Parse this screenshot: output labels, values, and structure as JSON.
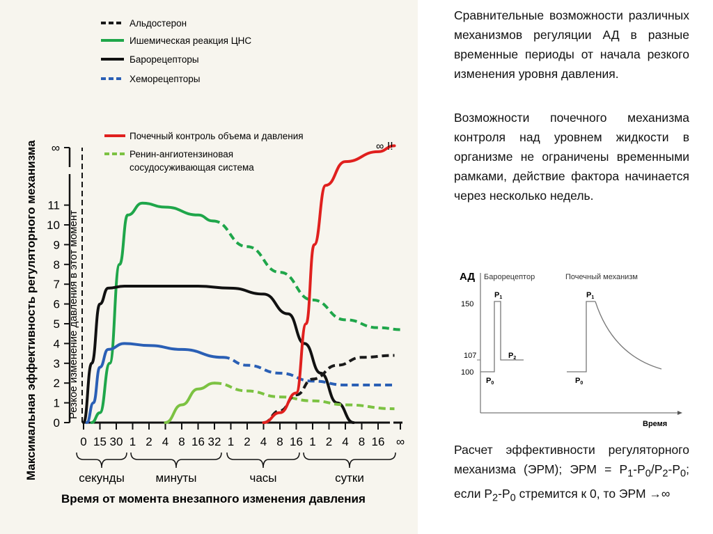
{
  "chart_data": [
    {
      "type": "line",
      "title": "",
      "ylabel": "Максимальная эффективность регуляторного механизма",
      "xlabel": "Время от момента внезапного изменения давления",
      "y_ticks": [
        "0",
        "1",
        "2",
        "3",
        "4",
        "5",
        "6",
        "7",
        "8",
        "9",
        "10",
        "11",
        "∞"
      ],
      "ylim": [
        0,
        11
      ],
      "x_ticks": [
        "0",
        "15",
        "30",
        "1",
        "2",
        "4",
        "8",
        "16",
        "32",
        "1",
        "2",
        "4",
        "8",
        "16",
        "1",
        "2",
        "4",
        "8",
        "16",
        "∞"
      ],
      "x_groups": [
        "секунды",
        "минуты",
        "часы",
        "сутки"
      ],
      "vertical_annotation": "Резкое изменение давления в этот момент",
      "infinity_note": "∞ !!",
      "legend": [
        {
          "name": "Альдостерон",
          "color": "#1a1a1a",
          "dash": true
        },
        {
          "name": "Ишемическая реакция ЦНС",
          "color": "#1fa64a",
          "dash": false
        },
        {
          "name": "Барорецепторы",
          "color": "#111111",
          "dash": false
        },
        {
          "name": "Хеморецепторы",
          "color": "#2a5fb5",
          "dash": true
        },
        {
          "name": "Почечный контроль объема и давления",
          "color": "#e0201e",
          "dash": false
        },
        {
          "name": "Ренин-ангиотензиновая",
          "name2": "сосудосуживающая система",
          "color": "#7cc242",
          "dash": true
        }
      ],
      "series": [
        {
          "name": "Ишемическая реакция ЦНС",
          "color": "#1fa64a",
          "solid": [
            [
              0.5,
              0
            ],
            [
              1,
              0.5
            ],
            [
              1.6,
              3
            ],
            [
              2.2,
              8
            ],
            [
              2.7,
              10.5
            ],
            [
              3.6,
              11.1
            ],
            [
              5,
              10.9
            ],
            [
              7,
              10.5
            ],
            [
              7.9,
              10.2
            ]
          ],
          "dashed": [
            [
              7.9,
              10.2
            ],
            [
              10,
              8.9
            ],
            [
              12,
              7.6
            ],
            [
              14,
              6.2
            ],
            [
              16,
              5.2
            ],
            [
              18,
              4.8
            ],
            [
              19.5,
              4.7
            ]
          ]
        },
        {
          "name": "Барорецепторы",
          "color": "#111111",
          "solid": [
            [
              0,
              0
            ],
            [
              0.5,
              3
            ],
            [
              1,
              6
            ],
            [
              1.5,
              6.8
            ],
            [
              2.5,
              6.9
            ],
            [
              7,
              6.9
            ],
            [
              9,
              6.8
            ],
            [
              11,
              6.5
            ],
            [
              12.5,
              5.5
            ],
            [
              13.5,
              4
            ],
            [
              14.5,
              2.5
            ],
            [
              15.5,
              1
            ],
            [
              16.5,
              0
            ]
          ],
          "dashed": []
        },
        {
          "name": "Хеморецепторы",
          "color": "#2a5fb5",
          "solid": [
            [
              0.2,
              0
            ],
            [
              0.6,
              1
            ],
            [
              1,
              2.8
            ],
            [
              1.5,
              3.7
            ],
            [
              2.5,
              4
            ],
            [
              4,
              3.9
            ],
            [
              6,
              3.7
            ],
            [
              8.5,
              3.3
            ]
          ],
          "dashed": [
            [
              8.5,
              3.3
            ],
            [
              10,
              2.9
            ],
            [
              12,
              2.5
            ],
            [
              14,
              2.1
            ],
            [
              16,
              1.9
            ],
            [
              19,
              1.9
            ]
          ]
        },
        {
          "name": "Ренин-ангиотензиновая сосудосуживающая система",
          "color": "#7cc242",
          "solid": [
            [
              5,
              0
            ],
            [
              6,
              0.9
            ],
            [
              7,
              1.7
            ],
            [
              8,
              2
            ]
          ],
          "dashed": [
            [
              8,
              2
            ],
            [
              10,
              1.6
            ],
            [
              12,
              1.3
            ],
            [
              14,
              1.1
            ],
            [
              16,
              0.9
            ],
            [
              19,
              0.7
            ]
          ]
        },
        {
          "name": "Альдостерон",
          "color": "#1a1a1a",
          "solid": [],
          "dashed": [
            [
              11,
              0
            ],
            [
              12,
              0.6
            ],
            [
              13,
              1.4
            ],
            [
              14,
              2.2
            ],
            [
              15.5,
              2.9
            ],
            [
              17,
              3.3
            ],
            [
              19,
              3.4
            ]
          ]
        },
        {
          "name": "Почечный контроль объема и давления",
          "color": "#e0201e",
          "solid": [
            [
              11,
              0
            ],
            [
              12,
              0.5
            ],
            [
              13,
              1.5
            ],
            [
              13.6,
              5
            ],
            [
              14.1,
              9
            ],
            [
              14.8,
              12
            ],
            [
              16,
              13.2
            ],
            [
              18,
              13.7
            ],
            [
              19,
              14
            ]
          ],
          "dashed": []
        }
      ]
    },
    {
      "type": "line",
      "ylabel": "АД",
      "xlabel": "Время",
      "y_ticks": [
        "150",
        "107",
        "100"
      ],
      "panels": [
        "Барорецептор",
        "Почечный механизм"
      ],
      "labels": {
        "p0": "P",
        "p1": "P",
        "p2": "P",
        "s0": "0",
        "s1": "1",
        "s2": "2"
      }
    }
  ],
  "text": {
    "p1": "Сравнительные возможности различных механизмов регуляции АД в разные временные периоды от начала резкого изменения уровня давления.",
    "p2": "Возможности почечного механизма контроля над уровнем жидкости в организме не ограничены временными рамками, действие фактора начинается через несколько недель.",
    "p3a": "Расчет эффективности регуляторного механизма (ЭРМ); ЭРМ = P",
    "p3_formula": [
      "1",
      "-P",
      "0",
      "/P",
      "2",
      "-P",
      "0",
      "; если P",
      "2",
      "-P",
      "0"
    ],
    "p3b": " стремится к 0, то ЭРМ →∞"
  }
}
